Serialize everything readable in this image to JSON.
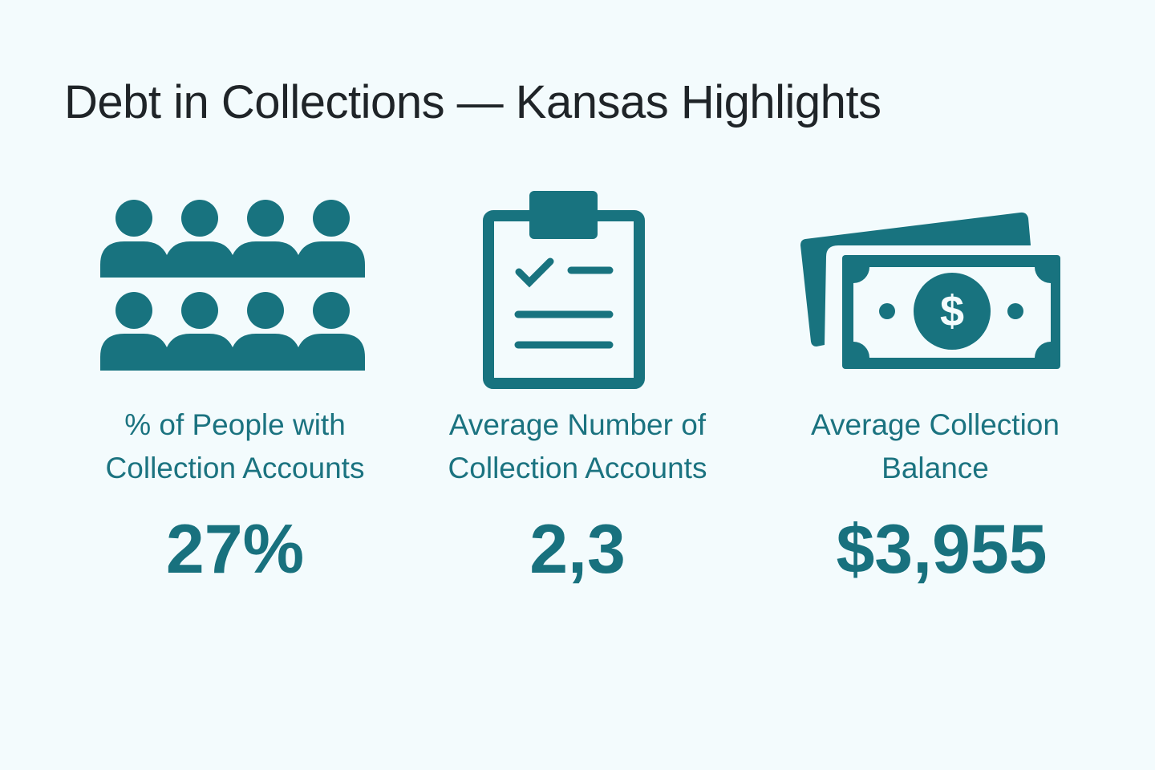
{
  "title": "Debt in Collections — Kansas Highlights",
  "accent_color": "#18737f",
  "background_color": "#f3fbfd",
  "stats": [
    {
      "icon": "people-group-icon",
      "label_line1": "% of People with",
      "label_line2": "Collection Accounts",
      "value": "27%"
    },
    {
      "icon": "clipboard-checklist-icon",
      "label_line1": "Average Number of",
      "label_line2": "Collection Accounts",
      "value": "2,3"
    },
    {
      "icon": "money-bills-icon",
      "label_line1": "Average Collection",
      "label_line2": "Balance",
      "value": "$3,955",
      "icon_symbol": "$"
    }
  ]
}
